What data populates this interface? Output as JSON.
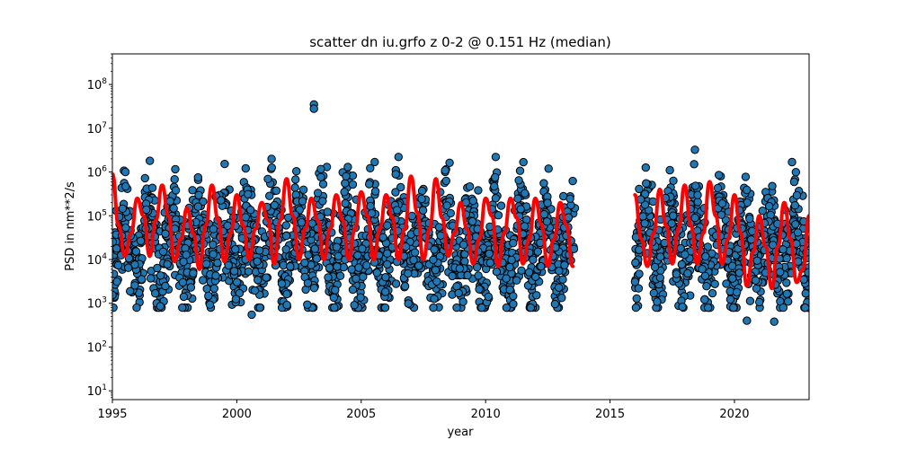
{
  "chart_data": {
    "type": "scatter",
    "title": "scatter dn iu.grfo z 0-2 @ 0.151 Hz (median)",
    "xlabel": "year",
    "ylabel": "PSD in nm**2/s",
    "xlim": [
      1995,
      2023
    ],
    "ylim": [
      6.3,
      500000000
    ],
    "yscale": "log",
    "grid": false,
    "x_ticks": [
      1995,
      2000,
      2005,
      2010,
      2015,
      2020
    ],
    "x_tick_labels": [
      "1995",
      "2000",
      "2005",
      "2010",
      "2015",
      "2020"
    ],
    "y_ticks": [
      10,
      100,
      1000,
      10000,
      100000,
      1000000,
      10000000,
      100000000
    ],
    "y_tick_labels": [
      "10^1",
      "10^2",
      "10^3",
      "10^4",
      "10^5",
      "10^6",
      "10^7",
      "10^8"
    ],
    "scatter_series": {
      "marker_color": "#1f77b4",
      "edge_color": "#000000",
      "data_ranges": [
        [
          1995.0,
          2013.6
        ],
        [
          2016.0,
          2023.0
        ]
      ],
      "gap": [
        2013.6,
        2016.0
      ],
      "typical_min": 1000,
      "typical_max": 5000000,
      "outliers": [
        {
          "x": 2003.1,
          "y": 35000000
        },
        {
          "x": 2003.1,
          "y": 28000000
        },
        {
          "x": 2000.6,
          "y": 550
        },
        {
          "x": 2020.5,
          "y": 400
        },
        {
          "x": 2021.6,
          "y": 380
        }
      ]
    },
    "median_line": {
      "color": "#ff0000",
      "x": [
        1995.0,
        1995.25,
        1995.5,
        1995.75,
        1996.0,
        1996.25,
        1996.5,
        1996.75,
        1997.0,
        1997.25,
        1997.5,
        1997.75,
        1998.0,
        1998.25,
        1998.5,
        1998.75,
        1999.0,
        1999.25,
        1999.5,
        1999.75,
        2000.0,
        2000.25,
        2000.5,
        2000.75,
        2001.0,
        2001.25,
        2001.5,
        2001.75,
        2002.0,
        2002.25,
        2002.5,
        2002.75,
        2003.0,
        2003.25,
        2003.5,
        2003.75,
        2004.0,
        2004.25,
        2004.5,
        2004.75,
        2005.0,
        2005.25,
        2005.5,
        2005.75,
        2006.0,
        2006.25,
        2006.5,
        2006.75,
        2007.0,
        2007.25,
        2007.5,
        2007.75,
        2008.0,
        2008.25,
        2008.5,
        2008.75,
        2009.0,
        2009.25,
        2009.5,
        2009.75,
        2010.0,
        2010.25,
        2010.5,
        2010.75,
        2011.0,
        2011.25,
        2011.5,
        2011.75,
        2012.0,
        2012.25,
        2012.5,
        2012.75,
        2013.0,
        2013.25,
        2013.5,
        null,
        2016.0,
        2016.25,
        2016.5,
        2016.75,
        2017.0,
        2017.25,
        2017.5,
        2017.75,
        2018.0,
        2018.25,
        2018.5,
        2018.75,
        2019.0,
        2019.25,
        2019.5,
        2019.75,
        2020.0,
        2020.25,
        2020.5,
        2020.75,
        2021.0,
        2021.25,
        2021.5,
        2021.75,
        2022.0,
        2022.25,
        2022.5,
        2022.75,
        2023.0
      ],
      "y": [
        900000,
        60000,
        12000,
        40000,
        250000,
        100000,
        12000,
        80000,
        500000,
        100000,
        9000,
        30000,
        150000,
        40000,
        6000,
        60000,
        500000,
        80000,
        9000,
        40000,
        300000,
        60000,
        10000,
        50000,
        200000,
        80000,
        8000,
        80000,
        700000,
        100000,
        10000,
        50000,
        250000,
        80000,
        10000,
        50000,
        300000,
        80000,
        10000,
        50000,
        350000,
        100000,
        10000,
        50000,
        300000,
        90000,
        10000,
        50000,
        800000,
        120000,
        10000,
        50000,
        700000,
        90000,
        12000,
        40000,
        200000,
        50000,
        8000,
        30000,
        250000,
        100000,
        7000,
        40000,
        250000,
        90000,
        8000,
        30000,
        250000,
        60000,
        7000,
        30000,
        200000,
        60000,
        7000,
        null,
        300000,
        30000,
        7000,
        40000,
        400000,
        60000,
        8000,
        50000,
        500000,
        60000,
        8000,
        40000,
        600000,
        100000,
        8000,
        30000,
        300000,
        40000,
        2500,
        15000,
        100000,
        20000,
        2200,
        20000,
        200000,
        30000,
        3000,
        6000,
        100000
      ]
    }
  }
}
